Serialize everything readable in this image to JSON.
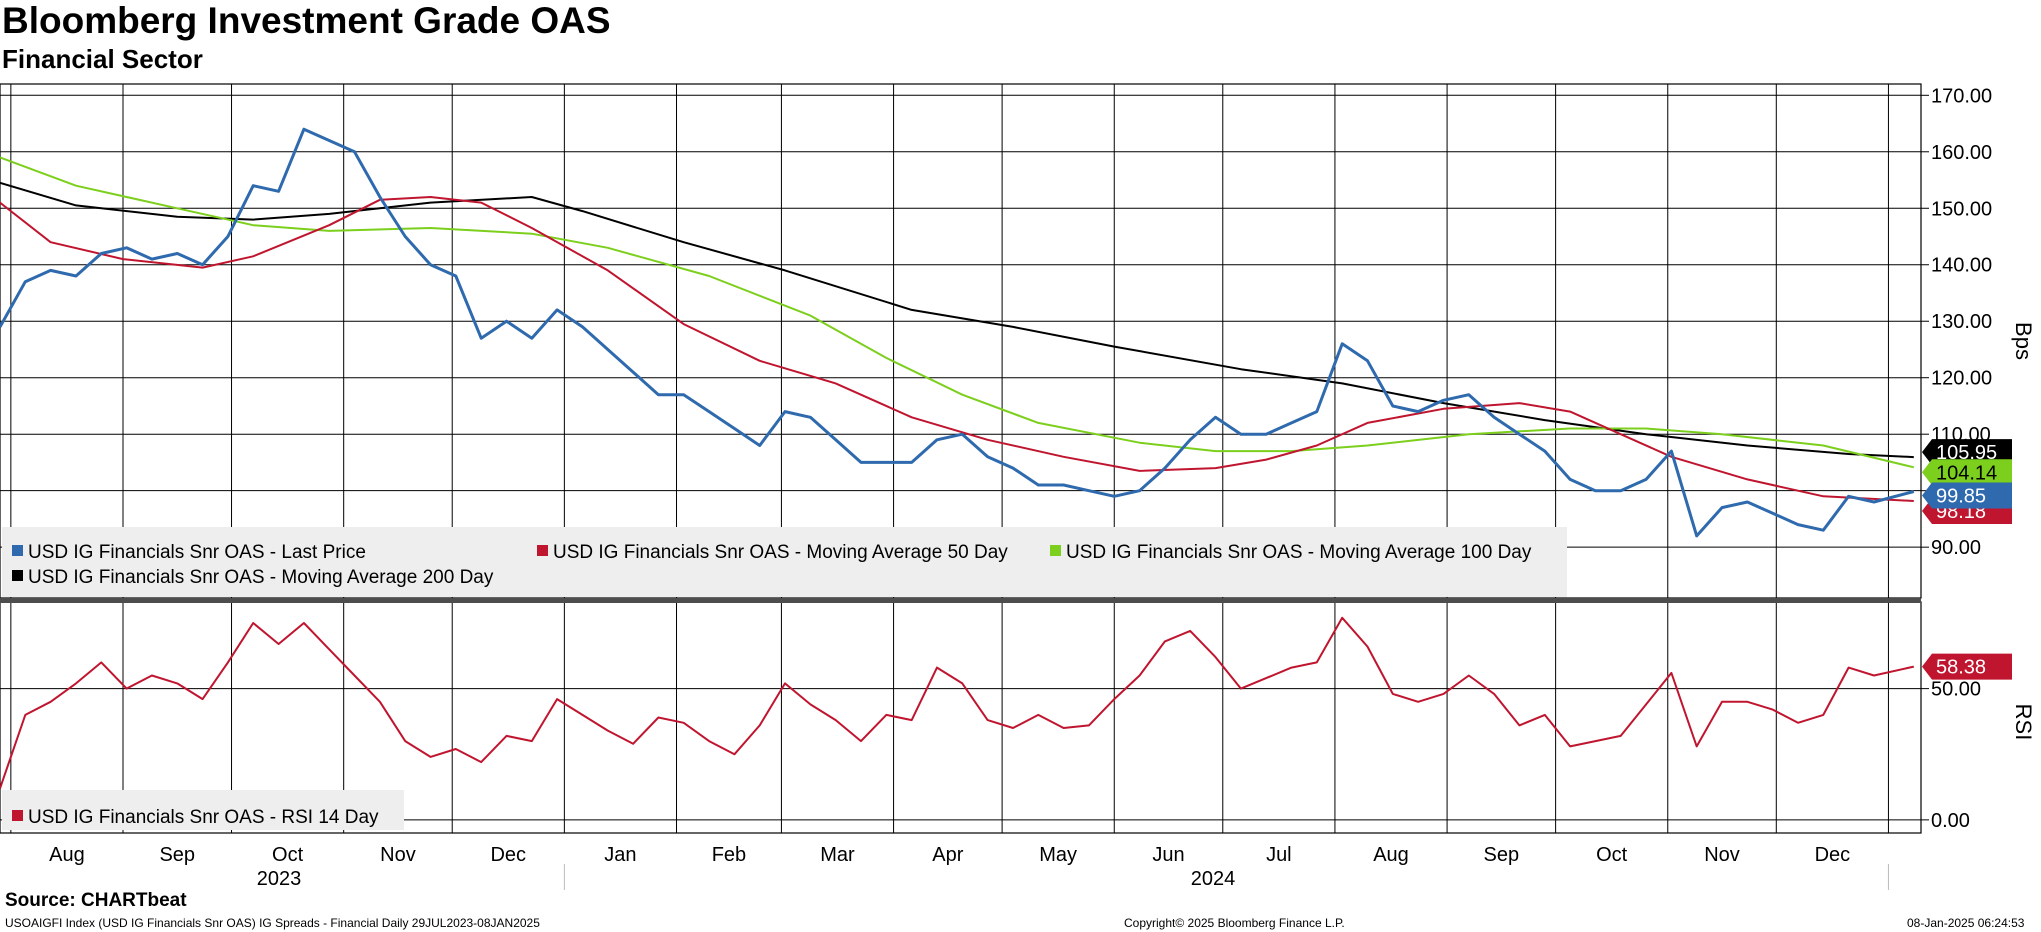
{
  "header": {
    "title": "Bloomberg Investment Grade OAS",
    "subtitle": "Financial Sector"
  },
  "footer": {
    "source": "Source: CHARTbeat",
    "left": "USOAIGFI Index (USD IG Financials Snr OAS) IG Spreads - Financial  Daily 29JUL2023-08JAN2025",
    "center": "Copyright© 2025 Bloomberg Finance L.P.",
    "right": "08-Jan-2025 06:24:53"
  },
  "colors": {
    "last_price": "#2e6aad",
    "ma50": "#c0152f",
    "ma100": "#7ccf1c",
    "ma200": "#000000",
    "rsi": "#c0152f"
  },
  "chart_data": [
    {
      "type": "line",
      "ylabel": "Bps",
      "ylim": [
        81,
        172
      ],
      "yticks": [
        "170.00",
        "160.00",
        "150.00",
        "140.00",
        "130.00",
        "120.00",
        "110.00",
        "90.00"
      ],
      "x_months": [
        "Aug",
        "Sep",
        "Oct",
        "Nov",
        "Dec",
        "Jan",
        "Feb",
        "Mar",
        "Apr",
        "May",
        "Jun",
        "Jul",
        "Aug",
        "Sep",
        "Oct",
        "Nov",
        "Dec"
      ],
      "x_years": [
        "2023",
        "2024"
      ],
      "grid": true,
      "legend_position": "bottom-left",
      "series": [
        {
          "name": "USD IG Financials Snr OAS - Last Price",
          "color": "#2e6aad",
          "last_value_label": "99.85",
          "points": [
            [
              "2023-07-29",
              129
            ],
            [
              "2023-08-05",
              137
            ],
            [
              "2023-08-12",
              139
            ],
            [
              "2023-08-19",
              138
            ],
            [
              "2023-08-26",
              142
            ],
            [
              "2023-09-02",
              143
            ],
            [
              "2023-09-09",
              141
            ],
            [
              "2023-09-16",
              142
            ],
            [
              "2023-09-23",
              140
            ],
            [
              "2023-09-30",
              145
            ],
            [
              "2023-10-07",
              154
            ],
            [
              "2023-10-14",
              153
            ],
            [
              "2023-10-21",
              164
            ],
            [
              "2023-10-28",
              162
            ],
            [
              "2023-11-04",
              160
            ],
            [
              "2023-11-11",
              152
            ],
            [
              "2023-11-18",
              145
            ],
            [
              "2023-11-25",
              140
            ],
            [
              "2023-12-02",
              138
            ],
            [
              "2023-12-09",
              127
            ],
            [
              "2023-12-16",
              130
            ],
            [
              "2023-12-23",
              127
            ],
            [
              "2023-12-30",
              132
            ],
            [
              "2024-01-06",
              129
            ],
            [
              "2024-01-13",
              125
            ],
            [
              "2024-01-20",
              121
            ],
            [
              "2024-01-27",
              117
            ],
            [
              "2024-02-03",
              117
            ],
            [
              "2024-02-10",
              114
            ],
            [
              "2024-02-17",
              111
            ],
            [
              "2024-02-24",
              108
            ],
            [
              "2024-03-02",
              114
            ],
            [
              "2024-03-09",
              113
            ],
            [
              "2024-03-16",
              109
            ],
            [
              "2024-03-23",
              105
            ],
            [
              "2024-03-30",
              105
            ],
            [
              "2024-04-06",
              105
            ],
            [
              "2024-04-13",
              109
            ],
            [
              "2024-04-20",
              110
            ],
            [
              "2024-04-27",
              106
            ],
            [
              "2024-05-04",
              104
            ],
            [
              "2024-05-11",
              101
            ],
            [
              "2024-05-18",
              101
            ],
            [
              "2024-05-25",
              100
            ],
            [
              "2024-06-01",
              99
            ],
            [
              "2024-06-08",
              100
            ],
            [
              "2024-06-15",
              104
            ],
            [
              "2024-06-22",
              109
            ],
            [
              "2024-06-29",
              113
            ],
            [
              "2024-07-06",
              110
            ],
            [
              "2024-07-13",
              110
            ],
            [
              "2024-07-20",
              112
            ],
            [
              "2024-07-27",
              114
            ],
            [
              "2024-08-03",
              126
            ],
            [
              "2024-08-10",
              123
            ],
            [
              "2024-08-17",
              115
            ],
            [
              "2024-08-24",
              114
            ],
            [
              "2024-08-31",
              116
            ],
            [
              "2024-09-07",
              117
            ],
            [
              "2024-09-14",
              113
            ],
            [
              "2024-09-21",
              110
            ],
            [
              "2024-09-28",
              107
            ],
            [
              "2024-10-05",
              102
            ],
            [
              "2024-10-12",
              100
            ],
            [
              "2024-10-19",
              100
            ],
            [
              "2024-10-26",
              102
            ],
            [
              "2024-11-02",
              107
            ],
            [
              "2024-11-09",
              92
            ],
            [
              "2024-11-16",
              97
            ],
            [
              "2024-11-23",
              98
            ],
            [
              "2024-11-30",
              96
            ],
            [
              "2024-12-07",
              94
            ],
            [
              "2024-12-14",
              93
            ],
            [
              "2024-12-21",
              99
            ],
            [
              "2024-12-28",
              98
            ],
            [
              "2025-01-08",
              99.85
            ]
          ]
        },
        {
          "name": "USD IG Financials Snr OAS - Moving Average 50 Day",
          "color": "#c0152f",
          "last_value_label": "98.18",
          "points": [
            [
              "2023-07-29",
              151
            ],
            [
              "2023-08-12",
              144
            ],
            [
              "2023-09-01",
              141
            ],
            [
              "2023-09-23",
              139.5
            ],
            [
              "2023-10-07",
              141.5
            ],
            [
              "2023-10-28",
              147
            ],
            [
              "2023-11-11",
              151.5
            ],
            [
              "2023-11-25",
              152
            ],
            [
              "2023-12-09",
              151
            ],
            [
              "2023-12-23",
              146.5
            ],
            [
              "2024-01-13",
              139
            ],
            [
              "2024-02-03",
              129.5
            ],
            [
              "2024-02-24",
              123
            ],
            [
              "2024-03-16",
              119
            ],
            [
              "2024-04-06",
              113
            ],
            [
              "2024-04-27",
              109
            ],
            [
              "2024-05-18",
              106
            ],
            [
              "2024-06-08",
              103.5
            ],
            [
              "2024-06-29",
              104
            ],
            [
              "2024-07-13",
              105.5
            ],
            [
              "2024-07-27",
              108
            ],
            [
              "2024-08-10",
              112
            ],
            [
              "2024-08-31",
              114.5
            ],
            [
              "2024-09-21",
              115.5
            ],
            [
              "2024-10-05",
              114
            ],
            [
              "2024-10-19",
              110
            ],
            [
              "2024-11-02",
              106
            ],
            [
              "2024-11-23",
              102
            ],
            [
              "2024-12-14",
              99
            ],
            [
              "2025-01-08",
              98.18
            ]
          ]
        },
        {
          "name": "USD IG Financials Snr OAS - Moving Average 100 Day",
          "color": "#7ccf1c",
          "last_value_label": "104.14",
          "points": [
            [
              "2023-07-29",
              159
            ],
            [
              "2023-08-19",
              154
            ],
            [
              "2023-09-16",
              150
            ],
            [
              "2023-10-07",
              147
            ],
            [
              "2023-10-28",
              146
            ],
            [
              "2023-11-25",
              146.5
            ],
            [
              "2023-12-23",
              145.5
            ],
            [
              "2024-01-13",
              143
            ],
            [
              "2024-02-10",
              138
            ],
            [
              "2024-03-09",
              131
            ],
            [
              "2024-03-30",
              123.5
            ],
            [
              "2024-04-20",
              117
            ],
            [
              "2024-05-11",
              112
            ],
            [
              "2024-06-08",
              108.5
            ],
            [
              "2024-06-29",
              107
            ],
            [
              "2024-07-20",
              107
            ],
            [
              "2024-08-10",
              108
            ],
            [
              "2024-09-07",
              110
            ],
            [
              "2024-10-05",
              111
            ],
            [
              "2024-10-26",
              111
            ],
            [
              "2024-11-16",
              110
            ],
            [
              "2024-12-14",
              108
            ],
            [
              "2025-01-08",
              104.14
            ]
          ]
        },
        {
          "name": "USD IG Financials Snr OAS - Moving Average 200 Day",
          "color": "#000000",
          "last_value_label": "105.95",
          "points": [
            [
              "2023-07-29",
              154.5
            ],
            [
              "2023-08-19",
              150.5
            ],
            [
              "2023-09-16",
              148.5
            ],
            [
              "2023-10-07",
              148
            ],
            [
              "2023-10-28",
              149
            ],
            [
              "2023-11-25",
              151
            ],
            [
              "2023-12-23",
              152
            ],
            [
              "2024-01-06",
              149.5
            ],
            [
              "2024-02-03",
              144
            ],
            [
              "2024-03-02",
              139
            ],
            [
              "2024-04-06",
              132
            ],
            [
              "2024-05-04",
              129
            ],
            [
              "2024-06-01",
              125.5
            ],
            [
              "2024-07-06",
              121.5
            ],
            [
              "2024-08-03",
              119
            ],
            [
              "2024-08-31",
              115.5
            ],
            [
              "2024-09-28",
              112.5
            ],
            [
              "2024-10-26",
              110
            ],
            [
              "2024-11-23",
              108
            ],
            [
              "2024-12-21",
              106.5
            ],
            [
              "2025-01-08",
              105.95
            ]
          ]
        }
      ]
    },
    {
      "type": "line",
      "ylabel": "RSI",
      "ylim": [
        -5,
        83
      ],
      "yticks": [
        "50.00",
        "0.00"
      ],
      "grid": true,
      "legend_position": "bottom-left",
      "series": [
        {
          "name": "USD IG Financials Snr OAS - RSI 14 Day",
          "color": "#c0152f",
          "last_value_label": "58.38",
          "points": [
            [
              "2023-07-29",
              12
            ],
            [
              "2023-08-05",
              40
            ],
            [
              "2023-08-12",
              45
            ],
            [
              "2023-08-19",
              52
            ],
            [
              "2023-08-26",
              60
            ],
            [
              "2023-09-02",
              50
            ],
            [
              "2023-09-09",
              55
            ],
            [
              "2023-09-16",
              52
            ],
            [
              "2023-09-23",
              46
            ],
            [
              "2023-09-30",
              60
            ],
            [
              "2023-10-07",
              75
            ],
            [
              "2023-10-14",
              67
            ],
            [
              "2023-10-21",
              75
            ],
            [
              "2023-10-28",
              65
            ],
            [
              "2023-11-04",
              55
            ],
            [
              "2023-11-11",
              45
            ],
            [
              "2023-11-18",
              30
            ],
            [
              "2023-11-25",
              24
            ],
            [
              "2023-12-02",
              27
            ],
            [
              "2023-12-09",
              22
            ],
            [
              "2023-12-16",
              32
            ],
            [
              "2023-12-23",
              30
            ],
            [
              "2023-12-30",
              46
            ],
            [
              "2024-01-06",
              40
            ],
            [
              "2024-01-13",
              34
            ],
            [
              "2024-01-20",
              29
            ],
            [
              "2024-01-27",
              39
            ],
            [
              "2024-02-03",
              37
            ],
            [
              "2024-02-10",
              30
            ],
            [
              "2024-02-17",
              25
            ],
            [
              "2024-02-24",
              36
            ],
            [
              "2024-03-02",
              52
            ],
            [
              "2024-03-09",
              44
            ],
            [
              "2024-03-16",
              38
            ],
            [
              "2024-03-23",
              30
            ],
            [
              "2024-03-30",
              40
            ],
            [
              "2024-04-06",
              38
            ],
            [
              "2024-04-13",
              58
            ],
            [
              "2024-04-20",
              52
            ],
            [
              "2024-04-27",
              38
            ],
            [
              "2024-05-04",
              35
            ],
            [
              "2024-05-11",
              40
            ],
            [
              "2024-05-18",
              35
            ],
            [
              "2024-05-25",
              36
            ],
            [
              "2024-06-01",
              46
            ],
            [
              "2024-06-08",
              55
            ],
            [
              "2024-06-15",
              68
            ],
            [
              "2024-06-22",
              72
            ],
            [
              "2024-06-29",
              62
            ],
            [
              "2024-07-06",
              50
            ],
            [
              "2024-07-13",
              54
            ],
            [
              "2024-07-20",
              58
            ],
            [
              "2024-07-27",
              60
            ],
            [
              "2024-08-03",
              77
            ],
            [
              "2024-08-10",
              66
            ],
            [
              "2024-08-17",
              48
            ],
            [
              "2024-08-24",
              45
            ],
            [
              "2024-08-31",
              48
            ],
            [
              "2024-09-07",
              55
            ],
            [
              "2024-09-14",
              48
            ],
            [
              "2024-09-21",
              36
            ],
            [
              "2024-09-28",
              40
            ],
            [
              "2024-10-05",
              28
            ],
            [
              "2024-10-12",
              30
            ],
            [
              "2024-10-19",
              32
            ],
            [
              "2024-10-26",
              44
            ],
            [
              "2024-11-02",
              56
            ],
            [
              "2024-11-09",
              28
            ],
            [
              "2024-11-16",
              45
            ],
            [
              "2024-11-23",
              45
            ],
            [
              "2024-11-30",
              42
            ],
            [
              "2024-12-07",
              37
            ],
            [
              "2024-12-14",
              40
            ],
            [
              "2024-12-21",
              58
            ],
            [
              "2024-12-28",
              55
            ],
            [
              "2025-01-08",
              58.38
            ]
          ]
        }
      ]
    }
  ]
}
